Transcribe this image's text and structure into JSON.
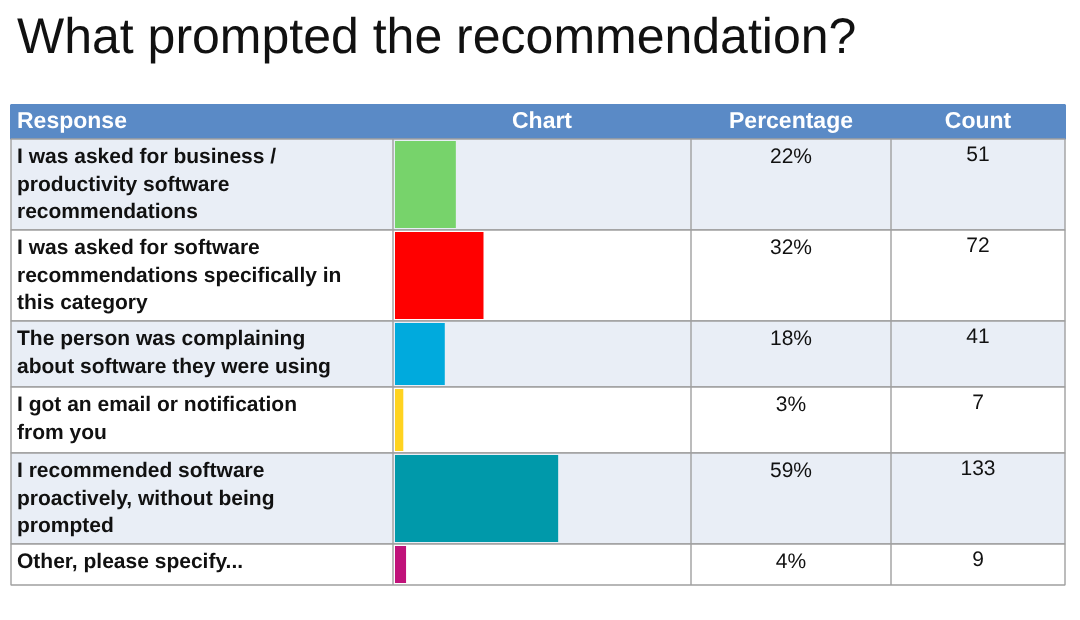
{
  "chart_data": {
    "type": "bar",
    "orientation": "horizontal",
    "title": "What prompted the recommendation?",
    "categories": [
      "I was asked for business / productivity software recommendations",
      "I was asked for software recommendations specifically in this category",
      "The person was complaining about software they were using",
      "I got an email or notification from you",
      "I recommended software proactively, without being prompted",
      "Other, please specify..."
    ],
    "values": [
      22,
      32,
      18,
      3,
      59,
      4
    ],
    "colors": [
      "#77d36b",
      "#ff0000",
      "#00aadd",
      "#ffd320",
      "#0099aa",
      "#c0127a"
    ],
    "value_labels": [
      "22%",
      "32%",
      "18%",
      "3%",
      "59%",
      "4%"
    ],
    "annotations": [
      "Response",
      "Chart",
      "Percentage",
      "Count",
      "51",
      "72",
      "41",
      "7",
      "133",
      "9"
    ]
  }
}
